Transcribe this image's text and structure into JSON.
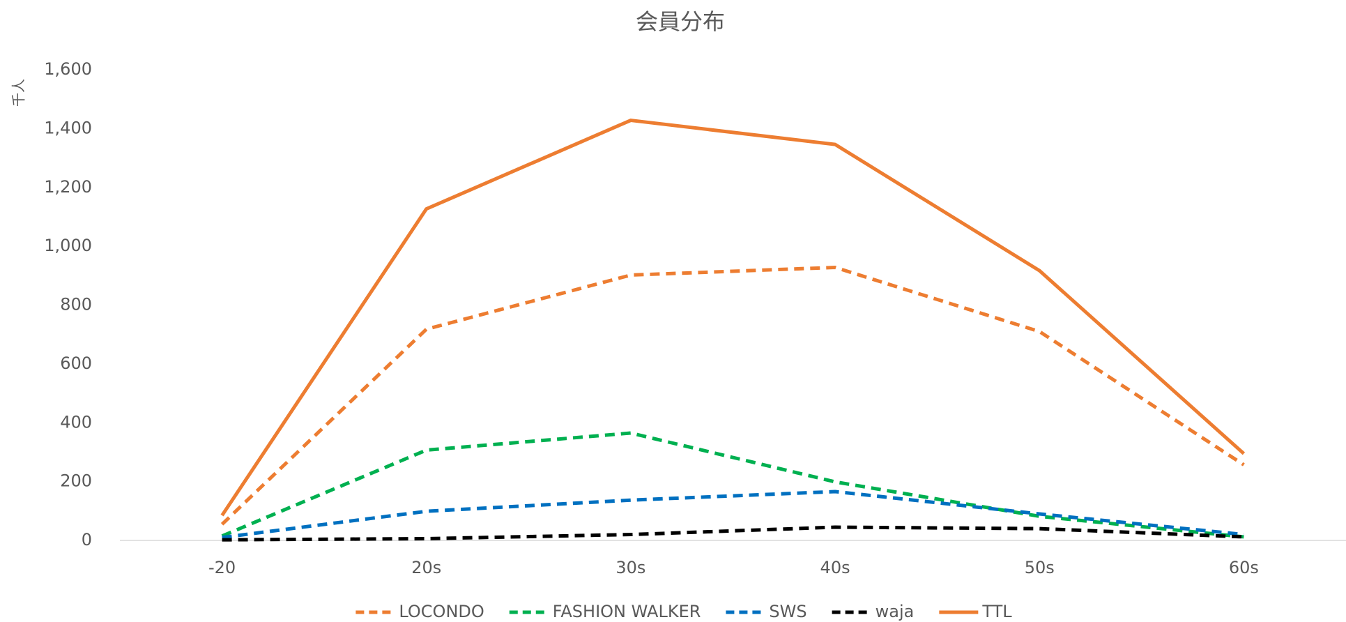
{
  "chart_data": {
    "type": "line",
    "title": "会員分布",
    "y_label": "千人",
    "categories": [
      "-20",
      "20s",
      "30s",
      "40s",
      "50s",
      "60s"
    ],
    "series": [
      {
        "name": "LOCONDO",
        "color": "#ed7d31",
        "line_style": "dashed",
        "values": [
          55,
          718,
          902,
          928,
          710,
          257
        ]
      },
      {
        "name": "FASHION WALKER",
        "color": "#00b050",
        "line_style": "dashed",
        "values": [
          15,
          307,
          365,
          199,
          82,
          12
        ]
      },
      {
        "name": "SWS",
        "color": "#0070c0",
        "line_style": "dashed",
        "values": [
          10,
          99,
          137,
          166,
          90,
          20
        ]
      },
      {
        "name": "waja",
        "color": "#000000",
        "line_style": "dashed",
        "values": [
          2,
          6,
          20,
          45,
          40,
          12
        ]
      },
      {
        "name": "TTL",
        "color": "#ed7d31",
        "line_style": "solid",
        "values": [
          85,
          1127,
          1428,
          1346,
          917,
          295
        ]
      }
    ],
    "ylim": [
      0,
      1600
    ],
    "yticks": [
      0,
      200,
      400,
      600,
      800,
      {
        "value": 1000,
        "label": "1,000"
      },
      {
        "value": 1200,
        "label": "1,200"
      },
      {
        "value": 1400,
        "label": "1,400"
      },
      {
        "value": 1600,
        "label": "1,600"
      }
    ],
    "grid": false,
    "legend": "bottom"
  }
}
